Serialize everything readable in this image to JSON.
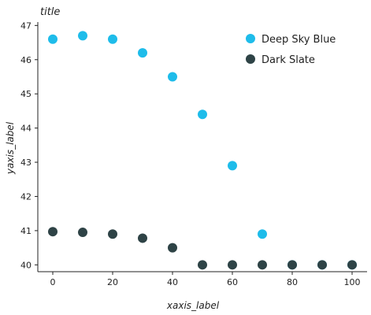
{
  "chart_data": {
    "type": "scatter",
    "title": "title",
    "xlabel": "xaxis_label",
    "ylabel": "yaxis_label",
    "xlim": [
      -5,
      105
    ],
    "ylim": [
      39.8,
      47.1
    ],
    "x_ticks": [
      0,
      20,
      40,
      60,
      80,
      100
    ],
    "y_ticks": [
      40,
      41,
      42,
      43,
      44,
      45,
      46,
      47
    ],
    "grid": false,
    "legend_position": "top-right",
    "series": [
      {
        "name": "Deep Sky Blue",
        "color": "#1ebcea",
        "x": [
          0,
          10,
          20,
          30,
          40,
          50,
          60,
          70,
          80,
          90,
          100
        ],
        "y": [
          46.6,
          46.7,
          46.6,
          46.2,
          45.5,
          44.4,
          42.9,
          40.9,
          40.0,
          40.0,
          40.0
        ]
      },
      {
        "name": "Dark Slate",
        "color": "#2e4346",
        "x": [
          0,
          10,
          20,
          30,
          40,
          50,
          60,
          70,
          80,
          90,
          100
        ],
        "y": [
          40.97,
          40.95,
          40.9,
          40.78,
          40.5,
          40.0,
          40.0,
          40.0,
          40.0,
          40.0,
          40.0
        ]
      }
    ]
  }
}
